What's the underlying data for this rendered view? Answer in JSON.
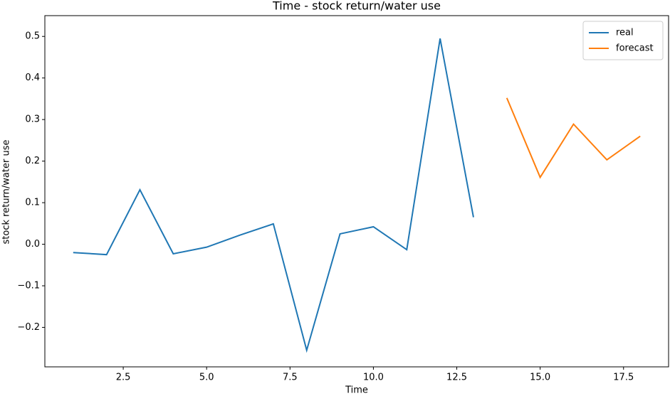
{
  "chart_data": {
    "type": "line",
    "title": "Time - stock return/water use",
    "x_label": "Time",
    "y_label": "stock return/water use",
    "series": [
      {
        "name": "real",
        "color": "#1f77b4",
        "x": [
          1,
          2,
          3,
          4,
          5,
          6,
          7,
          8,
          9,
          10,
          11,
          12,
          13
        ],
        "values": [
          -0.02,
          -0.025,
          0.131,
          -0.023,
          -0.007,
          0.022,
          0.049,
          -0.255,
          0.025,
          0.042,
          -0.013,
          0.495,
          0.065
        ]
      },
      {
        "name": "forecast",
        "color": "#ff7f0e",
        "x": [
          14,
          15,
          16,
          17,
          18
        ],
        "values": [
          0.352,
          0.161,
          0.289,
          0.203,
          0.26
        ]
      }
    ],
    "xlim": [
      0.15,
      18.85
    ],
    "xticks": [
      2.5,
      {
        "value": 5,
        "label": "5.0"
      },
      7.5,
      {
        "value": 10,
        "label": "10.0"
      },
      12.5,
      {
        "value": 15,
        "label": "15.0"
      },
      17.5
    ],
    "ylim": [
      -0.295,
      0.55
    ],
    "yticks": [
      {
        "value": -0.2,
        "label": "−0.2"
      },
      {
        "value": -0.1,
        "label": "−0.1"
      },
      {
        "value": 0,
        "label": "0.0"
      },
      0.1,
      0.2,
      0.3,
      0.4,
      0.5
    ],
    "grid": false,
    "legend": "upper right"
  }
}
